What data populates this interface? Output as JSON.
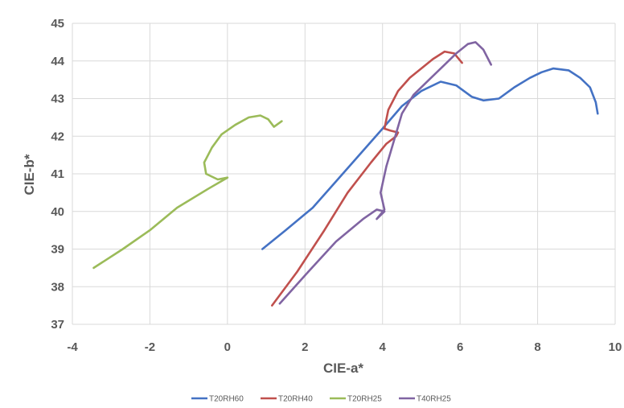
{
  "chart_data": {
    "type": "line",
    "title": "",
    "xlabel": "CIE-a*",
    "ylabel": "CIE-b*",
    "xlim": [
      -4,
      10
    ],
    "ylim": [
      37,
      45
    ],
    "xticks": [
      "-4",
      "-2",
      "0",
      "2",
      "4",
      "6",
      "8",
      "10"
    ],
    "yticks": [
      "37",
      "38",
      "39",
      "40",
      "41",
      "42",
      "43",
      "44",
      "45"
    ],
    "grid": true,
    "legend_position": "bottom",
    "series": [
      {
        "name": "T20RH60",
        "color": "#4472C4",
        "x": [
          0.9,
          1.5,
          2.2,
          2.8,
          3.4,
          4.0,
          4.5,
          5.0,
          5.5,
          5.9,
          6.3,
          6.6,
          7.0,
          7.4,
          7.8,
          8.1,
          8.4,
          8.8,
          9.1,
          9.35,
          9.5,
          9.55
        ],
        "y": [
          39.0,
          39.5,
          40.1,
          40.8,
          41.5,
          42.2,
          42.8,
          43.2,
          43.45,
          43.35,
          43.05,
          42.95,
          43.0,
          43.3,
          43.55,
          43.7,
          43.8,
          43.75,
          43.55,
          43.3,
          42.9,
          42.6
        ]
      },
      {
        "name": "T20RH40",
        "color": "#C0504D",
        "x": [
          1.15,
          1.8,
          2.5,
          3.1,
          3.7,
          4.1,
          4.35,
          4.4,
          4.2,
          4.05,
          4.15,
          4.4,
          4.7,
          5.0,
          5.3,
          5.6,
          5.85,
          6.05
        ],
        "y": [
          37.5,
          38.4,
          39.5,
          40.5,
          41.3,
          41.8,
          42.0,
          42.1,
          42.15,
          42.2,
          42.7,
          43.2,
          43.55,
          43.8,
          44.05,
          44.25,
          44.2,
          43.95
        ]
      },
      {
        "name": "T20RH25",
        "color": "#9BBB59",
        "x": [
          -3.45,
          -2.7,
          -2.0,
          -1.3,
          -0.5,
          0.0,
          -0.25,
          -0.55,
          -0.6,
          -0.4,
          -0.15,
          0.2,
          0.55,
          0.85,
          1.05,
          1.2,
          1.4
        ],
        "y": [
          38.5,
          39.0,
          39.5,
          40.1,
          40.6,
          40.9,
          40.85,
          41.0,
          41.3,
          41.7,
          42.05,
          42.3,
          42.5,
          42.55,
          42.45,
          42.25,
          42.4
        ]
      },
      {
        "name": "T40RH25",
        "color": "#8064A2",
        "x": [
          1.35,
          2.0,
          2.8,
          3.5,
          3.85,
          4.05,
          3.85,
          4.05,
          3.95,
          4.1,
          4.3,
          4.5,
          4.8,
          5.2,
          5.6,
          5.9,
          6.2,
          6.4,
          6.6,
          6.8
        ],
        "y": [
          37.55,
          38.3,
          39.2,
          39.8,
          40.05,
          40.0,
          39.8,
          40.05,
          40.5,
          41.2,
          41.9,
          42.6,
          43.1,
          43.5,
          43.9,
          44.2,
          44.45,
          44.5,
          44.3,
          43.9
        ]
      }
    ]
  }
}
